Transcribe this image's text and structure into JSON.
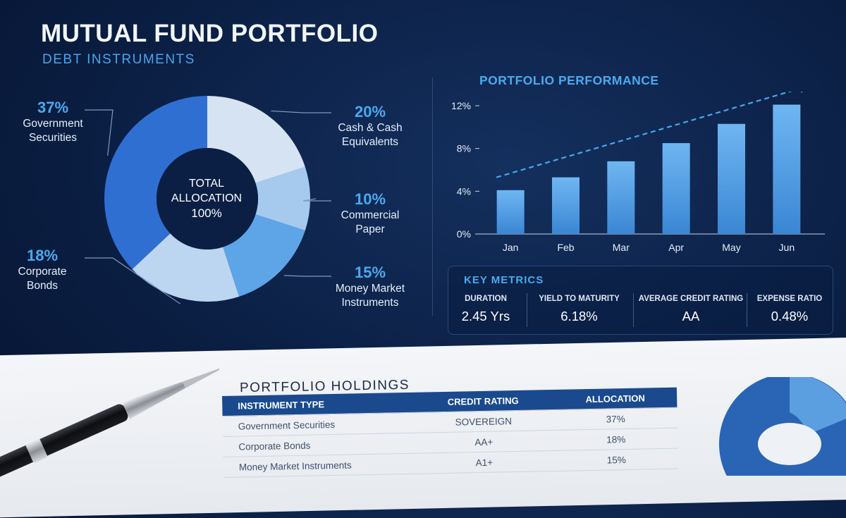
{
  "header": {
    "title": "MUTUAL FUND PORTFOLIO",
    "subtitle": "DEBT INSTRUMENTS"
  },
  "allocation": {
    "center_label_1": "TOTAL",
    "center_label_2": "ALLOCATION",
    "center_value": "100%",
    "colors": [
      "#2f6fd1",
      "#d5e3f3",
      "#a5caee",
      "#5da5e6",
      "#bcd5f1"
    ]
  },
  "chart_data": [
    {
      "type": "pie",
      "title": "",
      "categories": [
        "Government Securities",
        "Cash & Cash Equivalents",
        "Commercial Paper",
        "Money Market Instruments",
        "Corporate Bonds"
      ],
      "values": [
        37,
        20,
        10,
        15,
        18
      ],
      "labels": [
        "37%",
        "20%",
        "10%",
        "15%",
        "18%"
      ]
    },
    {
      "type": "bar",
      "title": "PORTFOLIO PERFORMANCE",
      "categories": [
        "Jan",
        "Feb",
        "Mar",
        "Apr",
        "May",
        "Jun"
      ],
      "values": [
        4.1,
        5.3,
        6.8,
        8.5,
        10.3,
        12.1
      ],
      "yticks": [
        "0%",
        "4%",
        "8%",
        "12%"
      ],
      "ylim": [
        0,
        12
      ],
      "grid": false,
      "trend_arrow": true
    }
  ],
  "key_metrics": {
    "title": "KEY METRICS",
    "items": [
      {
        "label": "DURATION",
        "value": "2.45 Yrs"
      },
      {
        "label": "YIELD TO MATURITY",
        "value": "6.18%"
      },
      {
        "label": "AVERAGE CREDIT RATING",
        "value": "AA"
      },
      {
        "label": "EXPENSE RATIO",
        "value": "0.48%"
      }
    ]
  },
  "holdings": {
    "title": "PORTFOLIO HOLDINGS",
    "headers": [
      "INSTRUMENT TYPE",
      "CREDIT RATING",
      "ALLOCATION"
    ],
    "rows": [
      [
        "Government Securities",
        "SOVEREIGN",
        "37%"
      ],
      [
        "Corporate Bonds",
        "AA+",
        "18%"
      ],
      [
        "Money Market Instruments",
        "A1+",
        "15%"
      ]
    ]
  }
}
